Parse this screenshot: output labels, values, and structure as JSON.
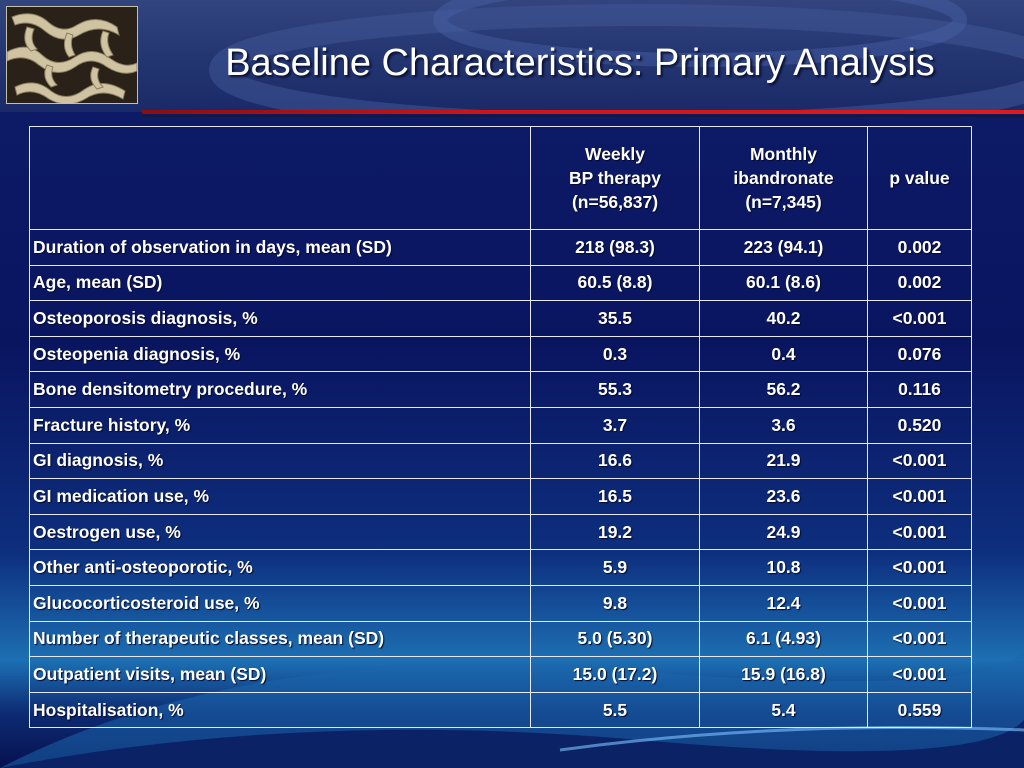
{
  "slide": {
    "title": "Baseline Characteristics: Primary Analysis"
  },
  "table": {
    "headers": {
      "label": "",
      "weekly": [
        "Weekly",
        "BP therapy",
        "(n=56,837)"
      ],
      "monthly": [
        "Monthly",
        "ibandronate",
        "(n=7,345)"
      ],
      "p_value": "p value"
    },
    "rows": [
      {
        "label": "Duration of observation in days, mean (SD)",
        "weekly": "218 (98.3)",
        "monthly": "223 (94.1)",
        "p": "0.002"
      },
      {
        "label": "Age, mean (SD)",
        "weekly": "60.5 (8.8)",
        "monthly": "60.1 (8.6)",
        "p": "0.002"
      },
      {
        "label": "Osteoporosis diagnosis, %",
        "weekly": "35.5",
        "monthly": "40.2",
        "p": "<0.001"
      },
      {
        "label": "Osteopenia diagnosis, %",
        "weekly": "0.3",
        "monthly": "0.4",
        "p": "0.076"
      },
      {
        "label": "Bone densitometry procedure, %",
        "weekly": "55.3",
        "monthly": "56.2",
        "p": "0.116"
      },
      {
        "label": "Fracture history, %",
        "weekly": "3.7",
        "monthly": "3.6",
        "p": "0.520"
      },
      {
        "label": "GI diagnosis, %",
        "weekly": "16.6",
        "monthly": "21.9",
        "p": "<0.001"
      },
      {
        "label": "GI medication use, %",
        "weekly": "16.5",
        "monthly": "23.6",
        "p": "<0.001"
      },
      {
        "label": "Oestrogen use, %",
        "weekly": "19.2",
        "monthly": "24.9",
        "p": "<0.001"
      },
      {
        "label": "Other anti-osteoporotic, %",
        "weekly": "5.9",
        "monthly": "10.8",
        "p": "<0.001"
      },
      {
        "label": "Glucocorticosteroid use, %",
        "weekly": "9.8",
        "monthly": "12.4",
        "p": "<0.001"
      },
      {
        "label": "Number of therapeutic classes, mean (SD)",
        "weekly": "5.0 (5.30)",
        "monthly": "6.1 (4.93)",
        "p": "<0.001"
      },
      {
        "label": "Outpatient visits, mean (SD)",
        "weekly": "15.0 (17.2)",
        "monthly": "15.9 (16.8)",
        "p": "<0.001"
      },
      {
        "label": "Hospitalisation, %",
        "weekly": "5.5",
        "monthly": "5.4",
        "p": "0.559"
      }
    ]
  },
  "theme": {
    "accent_red": "#d11414",
    "background_navy": "#0a1560",
    "text_color": "#ffffff",
    "logo_image": "bone-trabecular-structure-image"
  }
}
